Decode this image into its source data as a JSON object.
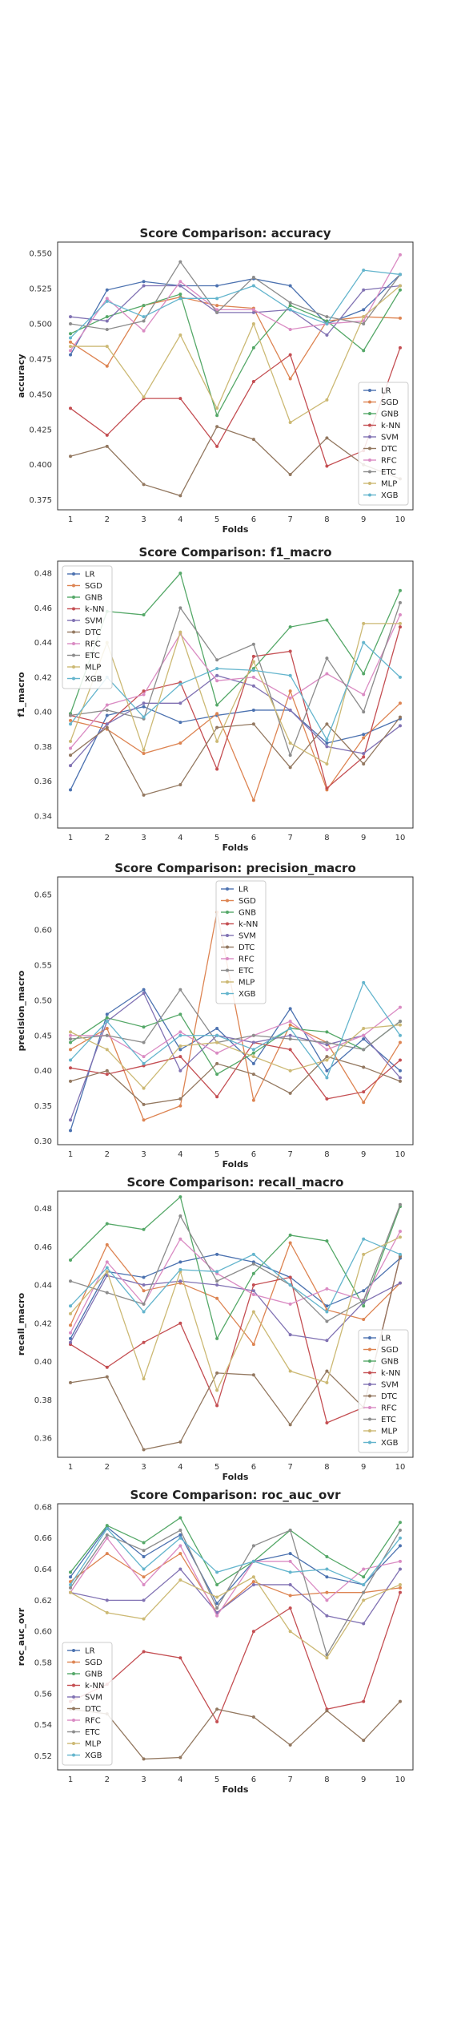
{
  "chart_data": [
    {
      "type": "line",
      "title": "Score Comparison: accuracy",
      "xlabel": "Folds",
      "ylabel": "accuracy",
      "x": [
        1,
        2,
        3,
        4,
        5,
        6,
        7,
        8,
        9,
        10
      ],
      "xticks": [
        "1",
        "2",
        "3",
        "4",
        "5",
        "6",
        "7",
        "8",
        "9",
        "10"
      ],
      "ylim": [
        0.368,
        0.558
      ],
      "yticks": [
        0.375,
        0.4,
        0.425,
        0.45,
        0.475,
        0.5,
        0.525,
        0.55
      ],
      "ytick_labels": [
        "0.375",
        "0.400",
        "0.425",
        "0.450",
        "0.475",
        "0.500",
        "0.525",
        "0.550"
      ],
      "legend_position": "lower-right",
      "grid": false,
      "series": [
        {
          "name": "LR",
          "values": [
            0.478,
            0.524,
            0.53,
            0.527,
            0.527,
            0.532,
            0.527,
            0.5,
            0.51,
            0.535
          ]
        },
        {
          "name": "SGD",
          "values": [
            0.487,
            0.47,
            0.513,
            0.519,
            0.513,
            0.511,
            0.461,
            0.502,
            0.505,
            0.504
          ]
        },
        {
          "name": "GNB",
          "values": [
            0.493,
            0.505,
            0.513,
            0.521,
            0.435,
            0.483,
            0.513,
            0.502,
            0.481,
            0.524
          ]
        },
        {
          "name": "k-NN",
          "values": [
            0.44,
            0.421,
            0.447,
            0.447,
            0.413,
            0.459,
            0.478,
            0.399,
            0.41,
            0.483
          ]
        },
        {
          "name": "SVM",
          "values": [
            0.505,
            0.502,
            0.527,
            0.527,
            0.508,
            0.508,
            0.51,
            0.492,
            0.524,
            0.527
          ]
        },
        {
          "name": "DTC",
          "values": [
            0.406,
            0.413,
            0.386,
            0.378,
            0.427,
            0.418,
            0.393,
            0.419,
            0.4,
            0.39
          ]
        },
        {
          "name": "RFC",
          "values": [
            0.481,
            0.518,
            0.495,
            0.53,
            0.51,
            0.51,
            0.496,
            0.5,
            0.502,
            0.549
          ]
        },
        {
          "name": "ETC",
          "values": [
            0.5,
            0.496,
            0.502,
            0.544,
            0.508,
            0.533,
            0.515,
            0.505,
            0.5,
            0.535
          ]
        },
        {
          "name": "MLP",
          "values": [
            0.484,
            0.484,
            0.448,
            0.492,
            0.44,
            0.5,
            0.43,
            0.446,
            0.505,
            0.527
          ]
        },
        {
          "name": "XGB",
          "values": [
            0.49,
            0.516,
            0.505,
            0.518,
            0.518,
            0.527,
            0.51,
            0.5,
            0.538,
            0.535
          ]
        }
      ]
    },
    {
      "type": "line",
      "title": "Score Comparison: f1_macro",
      "xlabel": "Folds",
      "ylabel": "f1_macro",
      "x": [
        1,
        2,
        3,
        4,
        5,
        6,
        7,
        8,
        9,
        10
      ],
      "xticks": [
        "1",
        "2",
        "3",
        "4",
        "5",
        "6",
        "7",
        "8",
        "9",
        "10"
      ],
      "ylim": [
        0.333,
        0.487
      ],
      "yticks": [
        0.34,
        0.36,
        0.38,
        0.4,
        0.42,
        0.44,
        0.46,
        0.48
      ],
      "ytick_labels": [
        "0.34",
        "0.36",
        "0.38",
        "0.40",
        "0.42",
        "0.44",
        "0.46",
        "0.48"
      ],
      "legend_position": "upper-left",
      "grid": false,
      "series": [
        {
          "name": "LR",
          "values": [
            0.355,
            0.398,
            0.403,
            0.394,
            0.398,
            0.401,
            0.401,
            0.382,
            0.387,
            0.396
          ]
        },
        {
          "name": "SGD",
          "values": [
            0.395,
            0.39,
            0.376,
            0.382,
            0.399,
            0.349,
            0.412,
            0.355,
            0.385,
            0.405
          ]
        },
        {
          "name": "GNB",
          "values": [
            0.399,
            0.458,
            0.456,
            0.48,
            0.404,
            0.425,
            0.449,
            0.453,
            0.422,
            0.47
          ]
        },
        {
          "name": "k-NN",
          "values": [
            0.398,
            0.393,
            0.412,
            0.417,
            0.367,
            0.432,
            0.435,
            0.356,
            0.374,
            0.449
          ]
        },
        {
          "name": "SVM",
          "values": [
            0.369,
            0.393,
            0.405,
            0.405,
            0.421,
            0.415,
            0.401,
            0.38,
            0.376,
            0.392
          ]
        },
        {
          "name": "DTC",
          "values": [
            0.375,
            0.391,
            0.352,
            0.358,
            0.391,
            0.393,
            0.368,
            0.393,
            0.37,
            0.397
          ]
        },
        {
          "name": "RFC",
          "values": [
            0.379,
            0.404,
            0.41,
            0.445,
            0.418,
            0.42,
            0.408,
            0.422,
            0.41,
            0.456
          ]
        },
        {
          "name": "ETC",
          "values": [
            0.398,
            0.401,
            0.396,
            0.46,
            0.43,
            0.439,
            0.375,
            0.431,
            0.4,
            0.463
          ]
        },
        {
          "name": "MLP",
          "values": [
            0.383,
            0.44,
            0.378,
            0.446,
            0.383,
            0.429,
            0.382,
            0.37,
            0.451,
            0.451
          ]
        },
        {
          "name": "XGB",
          "values": [
            0.393,
            0.42,
            0.397,
            0.416,
            0.425,
            0.424,
            0.421,
            0.384,
            0.44,
            0.42
          ]
        }
      ]
    },
    {
      "type": "line",
      "title": "Score Comparison: precision_macro",
      "xlabel": "Folds",
      "ylabel": "precision_macro",
      "x": [
        1,
        2,
        3,
        4,
        5,
        6,
        7,
        8,
        9,
        10
      ],
      "xticks": [
        "1",
        "2",
        "3",
        "4",
        "5",
        "6",
        "7",
        "8",
        "9",
        "10"
      ],
      "ylim": [
        0.295,
        0.675
      ],
      "yticks": [
        0.3,
        0.35,
        0.4,
        0.45,
        0.5,
        0.55,
        0.6,
        0.65
      ],
      "ytick_labels": [
        "0.30",
        "0.35",
        "0.40",
        "0.45",
        "0.50",
        "0.55",
        "0.60",
        "0.65"
      ],
      "legend_position": "upper-center",
      "grid": false,
      "series": [
        {
          "name": "LR",
          "values": [
            0.315,
            0.48,
            0.515,
            0.43,
            0.46,
            0.41,
            0.488,
            0.4,
            0.445,
            0.4
          ]
        },
        {
          "name": "SGD",
          "values": [
            0.43,
            0.46,
            0.33,
            0.35,
            0.625,
            0.358,
            0.465,
            0.44,
            0.355,
            0.44
          ]
        },
        {
          "name": "GNB",
          "values": [
            0.44,
            0.475,
            0.462,
            0.48,
            0.395,
            0.425,
            0.46,
            0.455,
            0.43,
            0.47
          ]
        },
        {
          "name": "k-NN",
          "values": [
            0.404,
            0.395,
            0.407,
            0.42,
            0.363,
            0.44,
            0.43,
            0.36,
            0.37,
            0.415
          ]
        },
        {
          "name": "SVM",
          "values": [
            0.33,
            0.47,
            0.51,
            0.4,
            0.45,
            0.44,
            0.45,
            0.437,
            0.45,
            0.39
          ]
        },
        {
          "name": "DTC",
          "values": [
            0.385,
            0.4,
            0.352,
            0.36,
            0.41,
            0.395,
            0.368,
            0.42,
            0.405,
            0.385
          ]
        },
        {
          "name": "RFC",
          "values": [
            0.45,
            0.45,
            0.42,
            0.455,
            0.425,
            0.45,
            0.47,
            0.43,
            0.45,
            0.49
          ]
        },
        {
          "name": "ETC",
          "values": [
            0.445,
            0.45,
            0.44,
            0.515,
            0.44,
            0.45,
            0.445,
            0.44,
            0.43,
            0.47
          ]
        },
        {
          "name": "MLP",
          "values": [
            0.455,
            0.43,
            0.375,
            0.435,
            0.44,
            0.42,
            0.4,
            0.415,
            0.46,
            0.465
          ]
        },
        {
          "name": "XGB",
          "values": [
            0.415,
            0.47,
            0.41,
            0.45,
            0.45,
            0.43,
            0.46,
            0.39,
            0.525,
            0.45
          ]
        }
      ]
    },
    {
      "type": "line",
      "title": "Score Comparison: recall_macro",
      "xlabel": "Folds",
      "ylabel": "recall_macro",
      "x": [
        1,
        2,
        3,
        4,
        5,
        6,
        7,
        8,
        9,
        10
      ],
      "xticks": [
        "1",
        "2",
        "3",
        "4",
        "5",
        "6",
        "7",
        "8",
        "9",
        "10"
      ],
      "ylim": [
        0.35,
        0.489
      ],
      "yticks": [
        0.36,
        0.38,
        0.4,
        0.42,
        0.44,
        0.46,
        0.48
      ],
      "ytick_labels": [
        "0.36",
        "0.38",
        "0.40",
        "0.42",
        "0.44",
        "0.46",
        "0.48"
      ],
      "legend_position": "lower-right",
      "grid": false,
      "series": [
        {
          "name": "LR",
          "values": [
            0.412,
            0.447,
            0.444,
            0.452,
            0.456,
            0.452,
            0.444,
            0.429,
            0.437,
            0.454
          ]
        },
        {
          "name": "SGD",
          "values": [
            0.419,
            0.461,
            0.437,
            0.441,
            0.433,
            0.409,
            0.462,
            0.427,
            0.422,
            0.441
          ]
        },
        {
          "name": "GNB",
          "values": [
            0.453,
            0.472,
            0.469,
            0.486,
            0.412,
            0.446,
            0.466,
            0.463,
            0.429,
            0.481
          ]
        },
        {
          "name": "k-NN",
          "values": [
            0.409,
            0.397,
            0.41,
            0.42,
            0.377,
            0.44,
            0.444,
            0.368,
            0.376,
            0.455
          ]
        },
        {
          "name": "SVM",
          "values": [
            0.41,
            0.445,
            0.44,
            0.442,
            0.44,
            0.437,
            0.414,
            0.411,
            0.431,
            0.441
          ]
        },
        {
          "name": "DTC",
          "values": [
            0.389,
            0.392,
            0.354,
            0.358,
            0.394,
            0.393,
            0.367,
            0.395,
            0.376,
            0.455
          ]
        },
        {
          "name": "RFC",
          "values": [
            0.415,
            0.452,
            0.43,
            0.464,
            0.446,
            0.435,
            0.43,
            0.438,
            0.432,
            0.468
          ]
        },
        {
          "name": "ETC",
          "values": [
            0.442,
            0.436,
            0.43,
            0.476,
            0.442,
            0.451,
            0.44,
            0.421,
            0.432,
            0.482
          ]
        },
        {
          "name": "MLP",
          "values": [
            0.425,
            0.447,
            0.391,
            0.447,
            0.385,
            0.426,
            0.395,
            0.389,
            0.456,
            0.465
          ]
        },
        {
          "name": "XGB",
          "values": [
            0.429,
            0.449,
            0.426,
            0.448,
            0.447,
            0.456,
            0.44,
            0.426,
            0.464,
            0.456
          ]
        }
      ]
    },
    {
      "type": "line",
      "title": "Score Comparison: roc_auc_ovr",
      "xlabel": "Folds",
      "ylabel": "roc_auc_ovr",
      "x": [
        1,
        2,
        3,
        4,
        5,
        6,
        7,
        8,
        9,
        10
      ],
      "xticks": [
        "1",
        "2",
        "3",
        "4",
        "5",
        "6",
        "7",
        "8",
        "9",
        "10"
      ],
      "ylim": [
        0.511,
        0.682
      ],
      "yticks": [
        0.52,
        0.54,
        0.56,
        0.58,
        0.6,
        0.62,
        0.64,
        0.66,
        0.68
      ],
      "ytick_labels": [
        "0.52",
        "0.54",
        "0.56",
        "0.58",
        "0.60",
        "0.62",
        "0.64",
        "0.66",
        "0.68"
      ],
      "legend_position": "lower-left",
      "grid": false,
      "series": [
        {
          "name": "LR",
          "values": [
            0.635,
            0.667,
            0.648,
            0.662,
            0.618,
            0.645,
            0.65,
            0.635,
            0.63,
            0.655
          ]
        },
        {
          "name": "SGD",
          "values": [
            0.632,
            0.65,
            0.635,
            0.65,
            0.612,
            0.632,
            0.623,
            0.625,
            0.625,
            0.628
          ]
        },
        {
          "name": "GNB",
          "values": [
            0.638,
            0.668,
            0.657,
            0.673,
            0.63,
            0.645,
            0.665,
            0.648,
            0.635,
            0.67
          ]
        },
        {
          "name": "k-NN",
          "values": [
            0.555,
            0.566,
            0.587,
            0.583,
            0.542,
            0.6,
            0.615,
            0.55,
            0.555,
            0.625
          ]
        },
        {
          "name": "SVM",
          "values": [
            0.625,
            0.62,
            0.62,
            0.64,
            0.612,
            0.63,
            0.63,
            0.61,
            0.605,
            0.64
          ]
        },
        {
          "name": "DTC",
          "values": [
            0.55,
            0.547,
            0.518,
            0.519,
            0.55,
            0.545,
            0.527,
            0.549,
            0.53,
            0.555
          ]
        },
        {
          "name": "RFC",
          "values": [
            0.625,
            0.66,
            0.63,
            0.655,
            0.61,
            0.645,
            0.645,
            0.62,
            0.64,
            0.645
          ]
        },
        {
          "name": "ETC",
          "values": [
            0.628,
            0.662,
            0.652,
            0.665,
            0.615,
            0.655,
            0.665,
            0.585,
            0.625,
            0.665
          ]
        },
        {
          "name": "MLP",
          "values": [
            0.625,
            0.612,
            0.608,
            0.633,
            0.622,
            0.635,
            0.6,
            0.583,
            0.62,
            0.63
          ]
        },
        {
          "name": "XGB",
          "values": [
            0.63,
            0.666,
            0.64,
            0.66,
            0.638,
            0.645,
            0.638,
            0.64,
            0.63,
            0.66
          ]
        }
      ]
    }
  ],
  "colors": [
    "#4c72b0",
    "#dd8452",
    "#55a868",
    "#c44e52",
    "#8172b3",
    "#937860",
    "#da8bc3",
    "#8c8c8c",
    "#ccb974",
    "#64b5cd"
  ]
}
